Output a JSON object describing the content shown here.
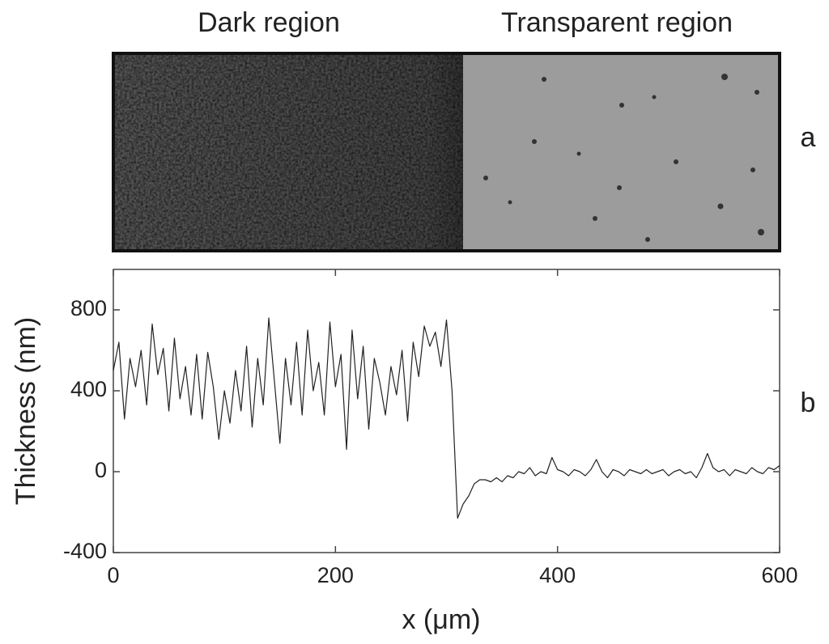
{
  "chart_data": {
    "type": "line",
    "annotations": {
      "left_region": "Dark region",
      "right_region": "Transparent region",
      "image_panel": "a",
      "plot_panel": "b"
    },
    "xlabel": "x (μm)",
    "ylabel": "Thickness (nm)",
    "x": [
      0,
      5,
      10,
      15,
      20,
      25,
      30,
      35,
      40,
      45,
      50,
      55,
      60,
      65,
      70,
      75,
      80,
      85,
      90,
      95,
      100,
      105,
      110,
      115,
      120,
      125,
      130,
      135,
      140,
      145,
      150,
      155,
      160,
      165,
      170,
      175,
      180,
      185,
      190,
      195,
      200,
      205,
      210,
      215,
      220,
      225,
      230,
      235,
      240,
      245,
      250,
      255,
      260,
      265,
      270,
      275,
      280,
      285,
      290,
      295,
      300,
      305,
      310,
      315,
      320,
      325,
      330,
      335,
      340,
      345,
      350,
      355,
      360,
      365,
      370,
      375,
      380,
      385,
      390,
      395,
      400,
      405,
      410,
      415,
      420,
      425,
      430,
      435,
      440,
      445,
      450,
      455,
      460,
      465,
      470,
      475,
      480,
      485,
      490,
      495,
      500,
      505,
      510,
      515,
      520,
      525,
      530,
      535,
      540,
      545,
      550,
      555,
      560,
      565,
      570,
      575,
      580,
      585,
      590,
      595,
      600
    ],
    "series": [
      {
        "color": "#222222",
        "values": [
          500,
          640,
          260,
          560,
          420,
          600,
          330,
          730,
          480,
          610,
          300,
          660,
          360,
          520,
          280,
          580,
          260,
          590,
          420,
          160,
          400,
          240,
          500,
          300,
          620,
          220,
          560,
          330,
          760,
          450,
          140,
          560,
          330,
          640,
          280,
          700,
          400,
          540,
          280,
          740,
          420,
          580,
          110,
          700,
          360,
          620,
          210,
          560,
          440,
          280,
          520,
          380,
          600,
          250,
          640,
          470,
          720,
          620,
          690,
          520,
          750,
          400,
          -230,
          -160,
          -120,
          -60,
          -40,
          -40,
          -50,
          -30,
          -50,
          -20,
          -30,
          0,
          -10,
          20,
          -20,
          0,
          -10,
          70,
          10,
          0,
          -20,
          10,
          0,
          -20,
          10,
          60,
          0,
          -30,
          10,
          0,
          -20,
          10,
          0,
          -10,
          10,
          -10,
          0,
          10,
          -20,
          0,
          10,
          -10,
          0,
          -30,
          20,
          90,
          20,
          0,
          10,
          -20,
          10,
          0,
          -10,
          20,
          0,
          -10,
          20,
          10,
          30
        ]
      }
    ],
    "xlim": [
      0,
      600
    ],
    "xticks": [
      0,
      200,
      400,
      600
    ],
    "ylim": [
      -400,
      1000
    ],
    "yticks": [
      -400,
      0,
      400,
      800
    ]
  }
}
